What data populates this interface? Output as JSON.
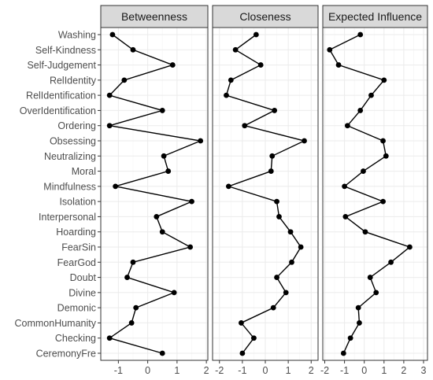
{
  "chart_data": {
    "type": "line",
    "categories": [
      "Washing",
      "Self-Kindness",
      "Self-Judgement",
      "RelIdentity",
      "RelIdentification",
      "OverIdentification",
      "Ordering",
      "Obsessing",
      "Neutralizing",
      "Moral",
      "Mindfulness",
      "Isolation",
      "Interpersonal",
      "Hoarding",
      "FearSin",
      "FearGod",
      "Doubt",
      "Divine",
      "Demonic",
      "CommonHumanity",
      "Checking",
      "CeremonyFre"
    ],
    "facets": [
      {
        "title": "Betweenness",
        "xlim": [
          -1.6,
          2.05
        ],
        "xticks": [
          -1,
          0,
          1,
          2
        ],
        "xtick_labels": [
          "-1",
          "0",
          "1",
          "2"
        ],
        "values": [
          -1.2,
          -0.5,
          0.85,
          -0.8,
          -1.3,
          0.5,
          -1.3,
          1.8,
          0.55,
          0.7,
          -1.1,
          1.5,
          0.3,
          0.5,
          1.45,
          -0.5,
          -0.7,
          0.9,
          -0.4,
          -0.55,
          -1.3,
          0.5
        ]
      },
      {
        "title": "Closeness",
        "xlim": [
          -2.3,
          2.3
        ],
        "xticks": [
          -2,
          -1,
          0,
          1,
          2
        ],
        "xtick_labels": [
          "-2",
          "-1",
          "0",
          "1",
          "2"
        ],
        "values": [
          -0.4,
          -1.3,
          -0.2,
          -1.5,
          -1.7,
          0.4,
          -0.9,
          1.7,
          0.3,
          0.25,
          -1.6,
          0.5,
          0.6,
          1.1,
          1.55,
          1.15,
          0.5,
          0.9,
          0.35,
          -1.05,
          -0.5,
          -1.0
        ]
      },
      {
        "title": "Expected Influence",
        "xlim": [
          -2.1,
          3.2
        ],
        "xticks": [
          -2,
          -1,
          0,
          1,
          2,
          3
        ],
        "xtick_labels": [
          "-2",
          "-1",
          "0",
          "1",
          "2",
          "3"
        ],
        "values": [
          -0.2,
          -1.75,
          -1.3,
          1.0,
          0.35,
          -0.2,
          -0.85,
          0.95,
          1.1,
          -0.05,
          -1.0,
          0.95,
          -0.95,
          0.05,
          2.3,
          1.35,
          0.3,
          0.6,
          -0.3,
          -0.25,
          -0.7,
          -1.05
        ]
      }
    ],
    "xlabel": "",
    "ylabel": "",
    "grid": true
  }
}
